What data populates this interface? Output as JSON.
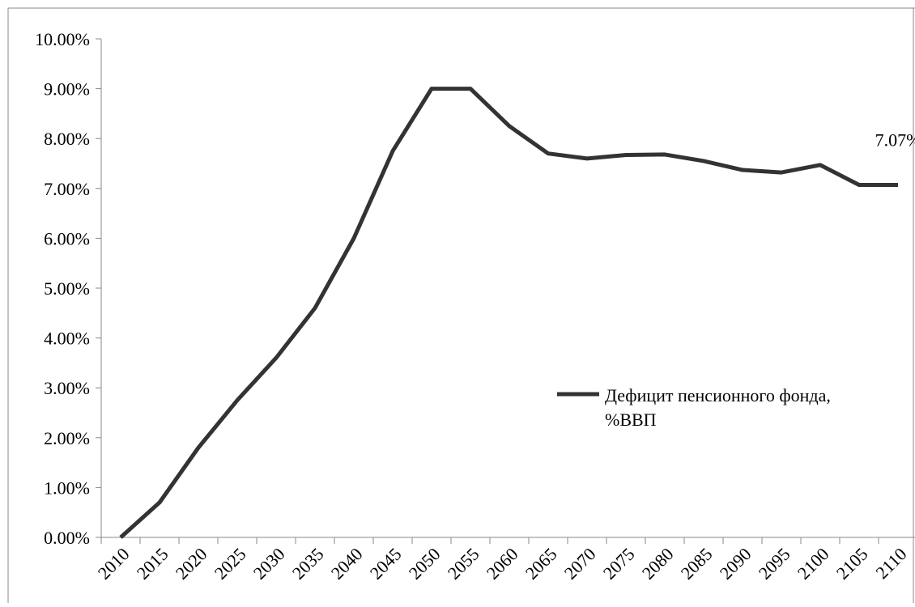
{
  "chart_data": {
    "type": "line",
    "categories": [
      "2010",
      "2015",
      "2020",
      "2025",
      "2030",
      "2035",
      "2040",
      "2045",
      "2050",
      "2055",
      "2060",
      "2065",
      "2070",
      "2075",
      "2080",
      "2085",
      "2090",
      "2095",
      "2100",
      "2105",
      "2110"
    ],
    "series": [
      {
        "name": "Дефицит пенсионного фонда, %ВВП",
        "color": "#333333",
        "values": [
          0,
          0.7,
          1.8,
          2.75,
          3.6,
          4.6,
          6.0,
          7.75,
          9.0,
          9.0,
          8.25,
          7.7,
          7.6,
          7.67,
          7.68,
          7.55,
          7.37,
          7.32,
          7.47,
          7.07,
          7.07
        ],
        "value_labels": [
          null,
          null,
          null,
          null,
          null,
          null,
          null,
          null,
          null,
          null,
          null,
          null,
          null,
          null,
          null,
          null,
          null,
          null,
          null,
          null,
          "7.07%"
        ]
      }
    ],
    "ylim": [
      0,
      10
    ],
    "yticks": [
      {
        "value": 0,
        "label": "0.00%"
      },
      {
        "value": 1,
        "label": "1.00%"
      },
      {
        "value": 2,
        "label": "2.00%"
      },
      {
        "value": 3,
        "label": "3.00%"
      },
      {
        "value": 4,
        "label": "4.00%"
      },
      {
        "value": 5,
        "label": "5.00%"
      },
      {
        "value": 6,
        "label": "6.00%"
      },
      {
        "value": 7,
        "label": "7.00%"
      },
      {
        "value": 8,
        "label": "8.00%"
      },
      {
        "value": 9,
        "label": "9.00%"
      },
      {
        "value": 10,
        "label": "10.00%"
      }
    ],
    "grid": false
  }
}
